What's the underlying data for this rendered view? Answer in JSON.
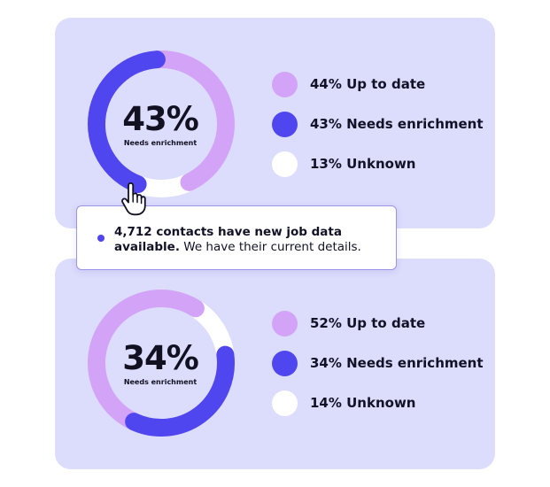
{
  "colors": {
    "up_to_date": "#d3a3f7",
    "needs_enrichment": "#5046f0",
    "unknown": "#ffffff",
    "card_bg": "#dcdcfd"
  },
  "panels": [
    {
      "center_value": "43%",
      "center_label": "Needs enrichment",
      "segments": [
        {
          "key": "up_to_date",
          "fraction": 0.44
        },
        {
          "key": "needs_enrichment",
          "fraction": 0.43
        },
        {
          "key": "unknown",
          "fraction": 0.13
        }
      ],
      "legend": [
        {
          "label": "44% Up to date",
          "icon": "dot-up-to-date"
        },
        {
          "label": "43% Needs enrichment",
          "icon": "dot-needs-enrichment"
        },
        {
          "label": "13% Unknown",
          "icon": "dot-unknown"
        }
      ]
    },
    {
      "center_value": "34%",
      "center_label": "Needs enrichment",
      "segments": [
        {
          "key": "up_to_date",
          "fraction": 0.52
        },
        {
          "key": "needs_enrichment",
          "fraction": 0.34
        },
        {
          "key": "unknown",
          "fraction": 0.14
        }
      ],
      "legend": [
        {
          "label": "52% Up to date",
          "icon": "dot-up-to-date"
        },
        {
          "label": "34% Needs enrichment",
          "icon": "dot-needs-enrichment"
        },
        {
          "label": "14% Unknown",
          "icon": "dot-unknown"
        }
      ]
    }
  ],
  "callout": {
    "bold_text": "4,712 contacts have new job data available.",
    "normal_text": " We have their current details."
  },
  "cursor_icon": "hand-pointer-icon"
}
